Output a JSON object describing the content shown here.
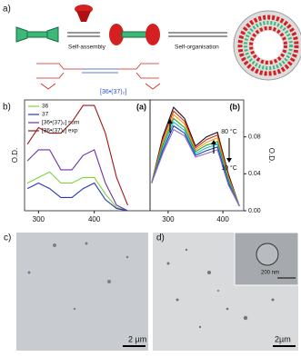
{
  "panels": {
    "a": {
      "label": "a)",
      "step1": "Self-assembly",
      "step2": "Self-organisation",
      "complex": "[36•(37)₂]"
    },
    "b": {
      "label": "b)"
    },
    "c": {
      "label": "c)",
      "scale": "2 µm"
    },
    "d": {
      "label": "d)",
      "scale": "2µm",
      "inset_scale": "200 nm"
    }
  },
  "chart_data": [
    {
      "type": "line",
      "title": "(a)",
      "ylabel": "O.D.",
      "legend": "upper left",
      "xlim": [
        275,
        500
      ],
      "ylim": [
        0,
        1
      ],
      "xticks": [
        300,
        400
      ],
      "x": [
        280,
        300,
        320,
        340,
        360,
        380,
        400,
        420,
        440,
        460
      ],
      "series": [
        {
          "name": "36",
          "color": "#7fd13b",
          "values": [
            0.25,
            0.3,
            0.35,
            0.25,
            0.25,
            0.3,
            0.3,
            0.15,
            0.03,
            0
          ]
        },
        {
          "name": "37",
          "color": "#2a36b8",
          "values": [
            0.2,
            0.25,
            0.2,
            0.12,
            0.12,
            0.2,
            0.25,
            0.1,
            0.02,
            0
          ]
        },
        {
          "name": "[36•(37)₂] sum",
          "color": "#7030a0",
          "values": [
            0.45,
            0.55,
            0.55,
            0.37,
            0.37,
            0.5,
            0.55,
            0.25,
            0.05,
            0
          ]
        },
        {
          "name": "[36•(37)₂] exp",
          "color": "#a01818",
          "values": [
            0.6,
            0.75,
            0.7,
            0.7,
            0.8,
            0.95,
            0.95,
            0.7,
            0.3,
            0.05
          ]
        }
      ]
    },
    {
      "type": "line",
      "title": "(b)",
      "ylabel": "O.D.",
      "y_axis_side": "right",
      "xlim": [
        267,
        438
      ],
      "ylim": [
        0,
        0.12
      ],
      "xticks": [
        300,
        400
      ],
      "yticks": [
        {
          "value": 0,
          "label": "0.00"
        },
        {
          "value": 0.04,
          "label": "0.04"
        },
        {
          "value": 0.08,
          "label": "0.08"
        }
      ],
      "annotations": [
        "80 °C",
        "10 °C"
      ],
      "x": [
        270,
        290,
        310,
        330,
        350,
        370,
        390,
        410,
        430
      ],
      "series": [
        {
          "color": "#111111",
          "values": [
            0.03,
            0.08,
            0.112,
            0.1,
            0.07,
            0.08,
            0.085,
            0.04,
            0.005
          ]
        },
        {
          "color": "#d62728",
          "values": [
            0.03,
            0.077,
            0.108,
            0.097,
            0.068,
            0.077,
            0.082,
            0.038,
            0.005
          ]
        },
        {
          "color": "#ff9900",
          "values": [
            0.03,
            0.074,
            0.104,
            0.094,
            0.066,
            0.074,
            0.079,
            0.036,
            0.005
          ]
        },
        {
          "color": "#2ca02c",
          "values": [
            0.03,
            0.071,
            0.1,
            0.09,
            0.064,
            0.071,
            0.075,
            0.034,
            0.005
          ]
        },
        {
          "color": "#17becf",
          "values": [
            0.03,
            0.068,
            0.096,
            0.087,
            0.062,
            0.068,
            0.072,
            0.032,
            0.005
          ]
        },
        {
          "color": "#1f3fbf",
          "values": [
            0.03,
            0.065,
            0.092,
            0.084,
            0.06,
            0.065,
            0.069,
            0.03,
            0.005
          ]
        },
        {
          "color": "#9467bd",
          "values": [
            0.03,
            0.062,
            0.088,
            0.081,
            0.058,
            0.062,
            0.066,
            0.028,
            0.005
          ]
        }
      ]
    }
  ]
}
